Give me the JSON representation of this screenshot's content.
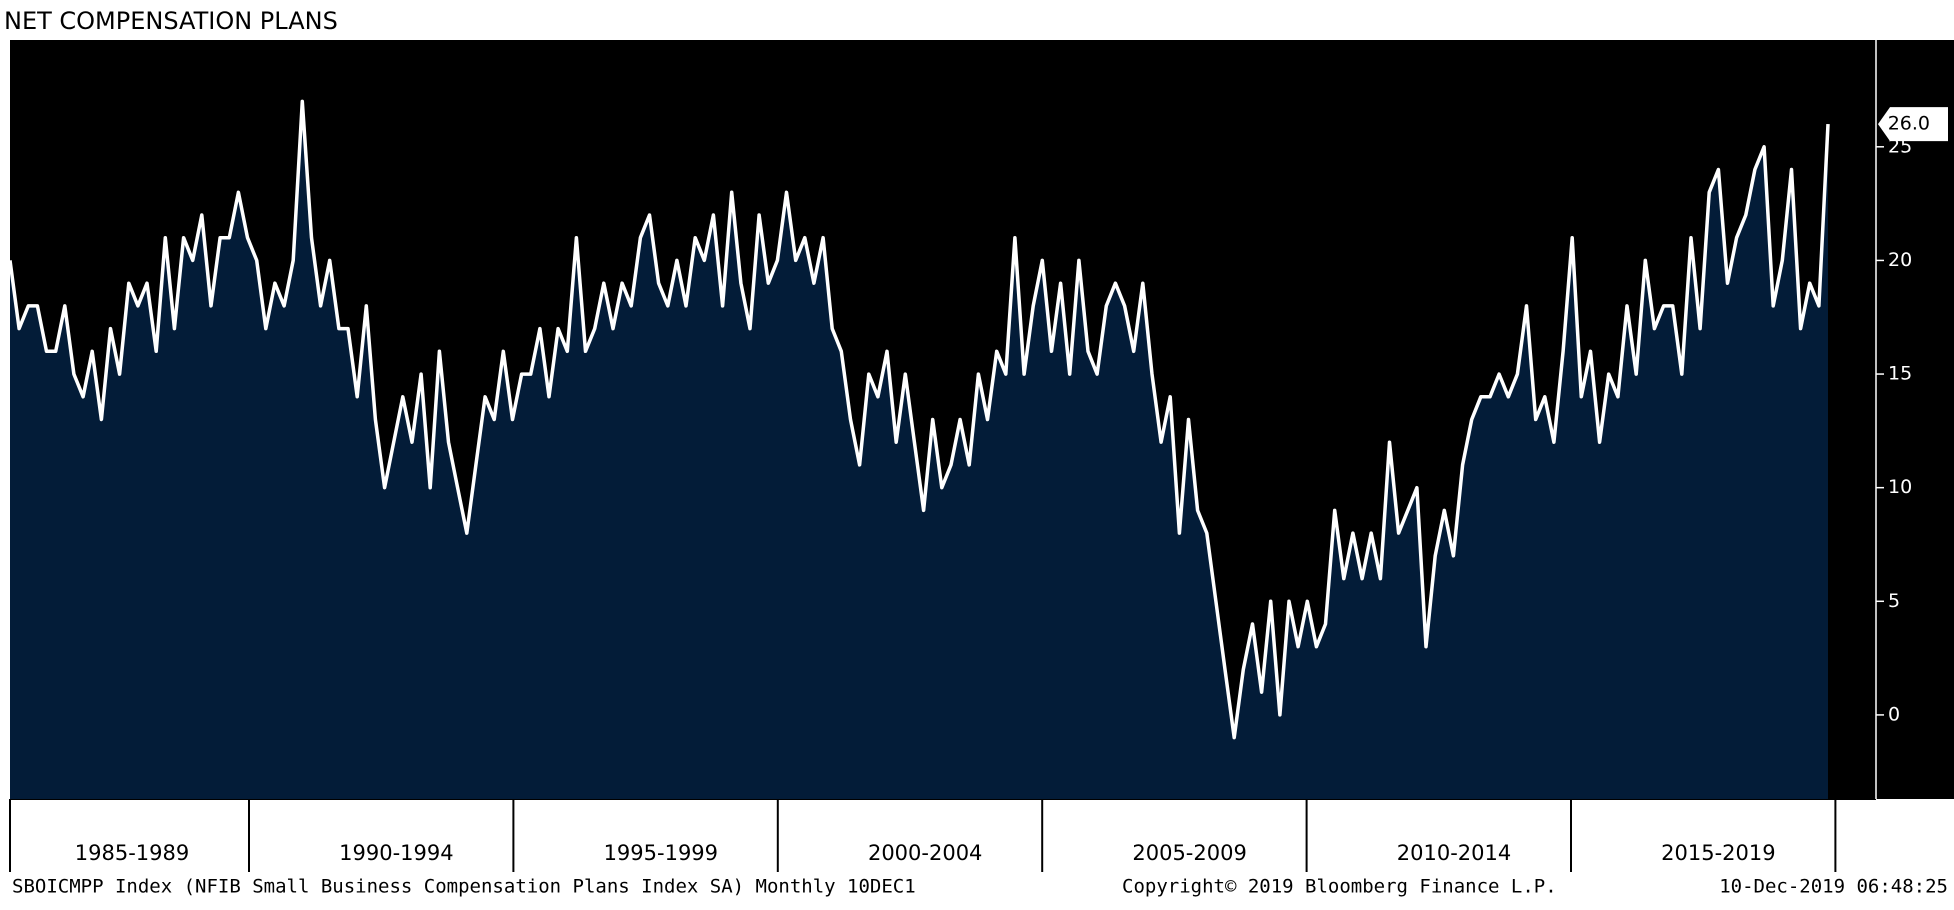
{
  "chart_data": {
    "type": "line",
    "title": "NET COMPENSATION PLANS",
    "periods": [
      "1985-1989",
      "1990-1994",
      "1995-1999",
      "2000-2004",
      "2005-2009",
      "2010-2014",
      "2015-2019"
    ],
    "series": [
      {
        "name": "SBOICMPP Index",
        "color": "#ffffff",
        "fill": "#031c38",
        "values": [
          20,
          17,
          18,
          18,
          16,
          16,
          18,
          15,
          14,
          16,
          13,
          17,
          15,
          19,
          18,
          19,
          16,
          21,
          17,
          21,
          20,
          22,
          18,
          21,
          21,
          23,
          21,
          20,
          17,
          19,
          18,
          20,
          27,
          21,
          18,
          20,
          17,
          17,
          14,
          18,
          13,
          10,
          12,
          14,
          12,
          15,
          10,
          16,
          12,
          10,
          8,
          11,
          14,
          13,
          16,
          13,
          15,
          15,
          17,
          14,
          17,
          16,
          21,
          16,
          17,
          19,
          17,
          19,
          18,
          21,
          22,
          19,
          18,
          20,
          18,
          21,
          20,
          22,
          18,
          23,
          19,
          17,
          22,
          19,
          20,
          23,
          20,
          21,
          19,
          21,
          17,
          16,
          13,
          11,
          15,
          14,
          16,
          12,
          15,
          12,
          9,
          13,
          10,
          11,
          13,
          11,
          15,
          13,
          16,
          15,
          21,
          15,
          18,
          20,
          16,
          19,
          15,
          20,
          16,
          15,
          18,
          19,
          18,
          16,
          19,
          15,
          12,
          14,
          8,
          13,
          9,
          8,
          5,
          2,
          -1,
          2,
          4,
          1,
          5,
          0,
          5,
          3,
          5,
          3,
          4,
          9,
          6,
          8,
          6,
          8,
          6,
          12,
          8,
          9,
          10,
          3,
          7,
          9,
          7,
          11,
          13,
          14,
          14,
          15,
          14,
          15,
          18,
          13,
          14,
          12,
          16,
          21,
          14,
          16,
          12,
          15,
          14,
          18,
          15,
          20,
          17,
          18,
          18,
          15,
          21,
          17,
          23,
          24,
          19,
          21,
          22,
          24,
          25,
          18,
          20,
          24,
          17,
          19,
          18,
          26
        ]
      }
    ],
    "last_value_label": "26.0",
    "ylim": [
      -3.7,
      29.7
    ],
    "yticks": [
      0,
      5,
      10,
      15,
      20,
      25
    ],
    "footer_left": "SBOICMPP Index (NFIB Small Business Compensation Plans Index SA)  Monthly 10DEC1",
    "footer_middle": "Copyright© 2019 Bloomberg Finance L.P.",
    "footer_right": "10-Dec-2019 06:48:25"
  }
}
